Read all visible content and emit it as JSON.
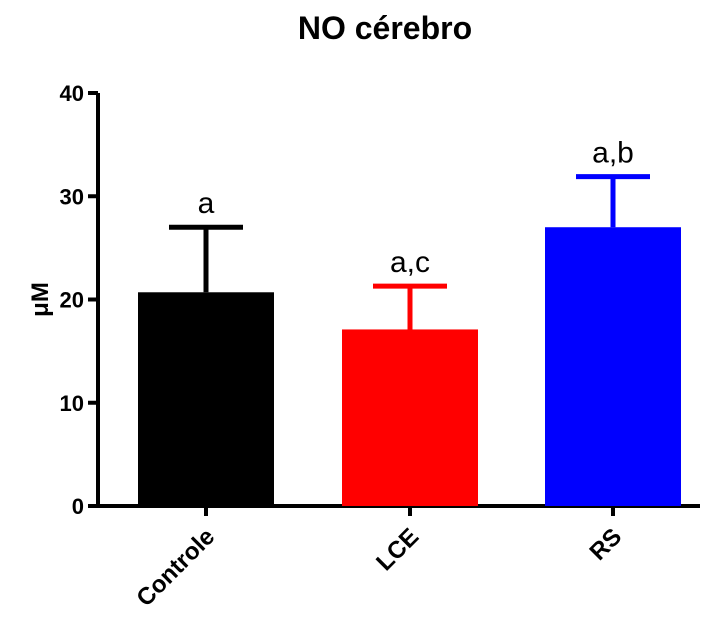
{
  "chart_data": {
    "type": "bar",
    "title": "NO cérebro",
    "xlabel": "",
    "ylabel": "μM",
    "ylim": [
      0,
      40
    ],
    "yticks": [
      "0",
      "10",
      "20",
      "30",
      "40"
    ],
    "categories": [
      "Controle",
      "LCE",
      "RS"
    ],
    "values": [
      20.7,
      17.1,
      27.0
    ],
    "errors": [
      6.3,
      4.2,
      4.9
    ],
    "annotations": [
      "a",
      "a,c",
      "a,b"
    ],
    "colors": [
      "#000000",
      "#ff0000",
      "#0000ff"
    ],
    "grid": false,
    "legend": "none"
  }
}
